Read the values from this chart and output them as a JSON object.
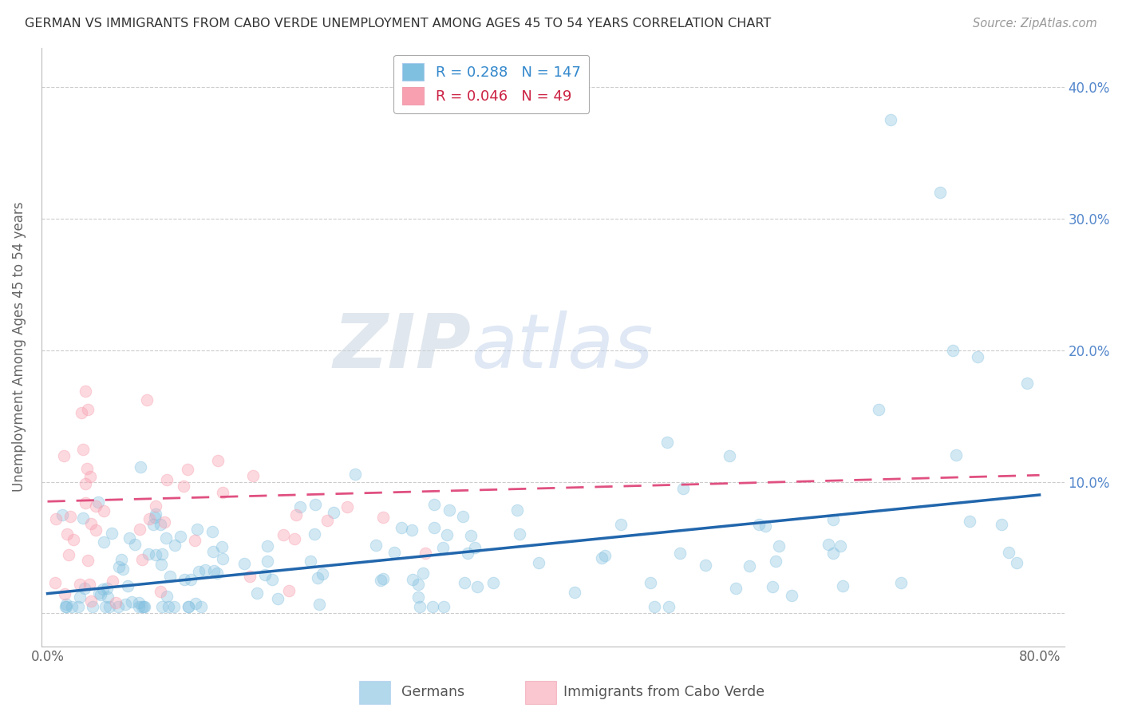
{
  "title": "GERMAN VS IMMIGRANTS FROM CABO VERDE UNEMPLOYMENT AMONG AGES 45 TO 54 YEARS CORRELATION CHART",
  "source": "Source: ZipAtlas.com",
  "ylabel": "Unemployment Among Ages 45 to 54 years",
  "xlim": [
    -0.005,
    0.82
  ],
  "ylim": [
    -0.025,
    0.43
  ],
  "yticks": [
    0.0,
    0.1,
    0.2,
    0.3,
    0.4
  ],
  "ytick_labels": [
    "",
    "10.0%",
    "20.0%",
    "30.0%",
    "40.0%"
  ],
  "xticks": [
    0.0,
    0.1,
    0.2,
    0.3,
    0.4,
    0.5,
    0.6,
    0.7,
    0.8
  ],
  "xtick_labels": [
    "0.0%",
    "",
    "",
    "",
    "",
    "",
    "",
    "",
    "80.0%"
  ],
  "german_color": "#7fbfdf",
  "cabo_verde_color": "#f8a0b0",
  "german_line_color": "#2166ac",
  "cabo_verde_line_color": "#e05080",
  "german_R": 0.288,
  "german_N": 147,
  "cabo_verde_R": 0.046,
  "cabo_verde_N": 49,
  "watermark_zip": "ZIP",
  "watermark_atlas": "atlas",
  "watermark_color_zip": "#d0d8e8",
  "watermark_color_atlas": "#b8cce4"
}
